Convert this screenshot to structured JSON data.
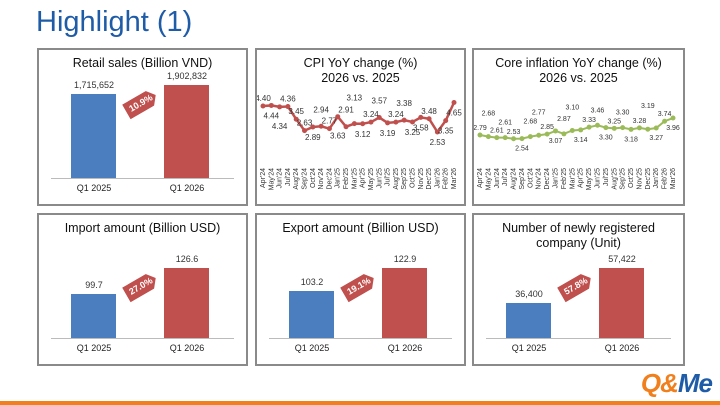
{
  "title": "Highlight (1)",
  "colors": {
    "blue": "#4a7ebf",
    "red": "#c0504d",
    "green": "#9bbb59",
    "brand_orange": "#f07f1c",
    "brand_blue": "#1f5ca8"
  },
  "logo": {
    "text_a": "Q&",
    "text_b": "Me"
  },
  "chart_data": [
    {
      "type": "bar",
      "title": "Retail sales (Billion VND)",
      "categories": [
        "Q1 2025",
        "Q1 2026"
      ],
      "values": [
        1715652,
        1902832
      ],
      "value_labels": [
        "1,715,652",
        "1,902,832"
      ],
      "growth": "10.9%"
    },
    {
      "type": "line",
      "title": "CPI YoY change (%)\n2026 vs. 2025",
      "categories": [
        "Apr'24",
        "May'24",
        "Jun'24",
        "Jul'24",
        "Aug'24",
        "Sep'24",
        "Oct'24",
        "Nov'24",
        "Dec'24",
        "Jan'25",
        "Feb'25",
        "Mar'25",
        "Apr'25",
        "May'25",
        "Jun'25",
        "Jul'25",
        "Aug'25",
        "Sep'25",
        "Oct'25",
        "Nov'25",
        "Dec'25",
        "Jan'26",
        "Feb'26",
        "Mar'26"
      ],
      "values": [
        4.4,
        4.44,
        4.34,
        4.36,
        3.45,
        2.63,
        2.89,
        2.94,
        2.77,
        3.63,
        2.91,
        3.13,
        3.12,
        3.24,
        3.57,
        3.19,
        3.24,
        3.38,
        3.25,
        3.58,
        3.48,
        2.53,
        3.35,
        4.65
      ],
      "color": "#c0504d"
    },
    {
      "type": "line",
      "title": "Core inflation YoY change (%)\n2026 vs. 2025",
      "categories": [
        "Apr'24",
        "May'24",
        "Jun'24",
        "Jul'24",
        "Aug'24",
        "Sep'24",
        "Oct'24",
        "Nov'24",
        "Dec'24",
        "Jan'25",
        "Feb'25",
        "Mar'25",
        "Apr'25",
        "May'25",
        "Jun'25",
        "Jul'25",
        "Aug'25",
        "Sep'25",
        "Oct'25",
        "Nov'25",
        "Dec'25",
        "Jan'26",
        "Feb'26",
        "Mar'26"
      ],
      "values": [
        2.79,
        2.68,
        2.61,
        2.61,
        2.53,
        2.54,
        2.68,
        2.77,
        2.85,
        3.07,
        2.87,
        3.1,
        3.14,
        3.33,
        3.46,
        3.3,
        3.25,
        3.3,
        3.18,
        3.28,
        3.19,
        3.27,
        3.74,
        3.96
      ],
      "color": "#9bbb59"
    },
    {
      "type": "bar",
      "title": "Import amount (Billion USD)",
      "categories": [
        "Q1 2025",
        "Q1 2026"
      ],
      "values": [
        99.7,
        126.6
      ],
      "value_labels": [
        "99.7",
        "126.6"
      ],
      "growth": "27.0%"
    },
    {
      "type": "bar",
      "title": "Export amount (Billion USD)",
      "categories": [
        "Q1 2025",
        "Q1 2026"
      ],
      "values": [
        103.2,
        122.9
      ],
      "value_labels": [
        "103.2",
        "122.9"
      ],
      "growth": "19.1%"
    },
    {
      "type": "bar",
      "title": "Number of newly registered\ncompany (Unit)",
      "categories": [
        "Q1 2025",
        "Q1 2026"
      ],
      "values": [
        36400,
        57422
      ],
      "value_labels": [
        "36,400",
        "57,422"
      ],
      "growth": "57.8%"
    }
  ]
}
